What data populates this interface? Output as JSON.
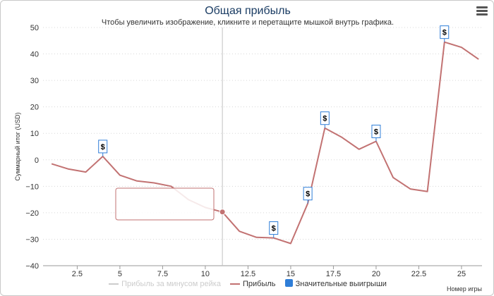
{
  "chart_data": {
    "type": "line",
    "title": "Общая прибыль",
    "subtitle": "Чтобы увеличить изображение, кликните и перетащите мышкой внутрь графика.",
    "xlabel": "Номер игры",
    "ylabel": "Суммарный итог (USD)",
    "xlim": [
      0.5,
      26.2
    ],
    "ylim": [
      -40,
      50
    ],
    "xticks": [
      2.5,
      5,
      7.5,
      10,
      12.5,
      15,
      17.5,
      20,
      22.5,
      25
    ],
    "xtick_labels": [
      "2.5",
      "5",
      "7.5",
      "10",
      "12.5",
      "15",
      "17.5",
      "20",
      "22.5",
      "25"
    ],
    "yticks": [
      -40,
      -30,
      -20,
      -10,
      0,
      10,
      20,
      30,
      40,
      50
    ],
    "ytick_labels": [
      "−40",
      "−30",
      "−20",
      "−10",
      "0",
      "10",
      "20",
      "30",
      "40",
      "50"
    ],
    "series": [
      {
        "name": "Прибыль",
        "color": "#c27272",
        "x": [
          1,
          2,
          3,
          4,
          5,
          6,
          7,
          8,
          9,
          10,
          11,
          12,
          13,
          14,
          15,
          16,
          17,
          18,
          19,
          20,
          21,
          22,
          23,
          24,
          25,
          26
        ],
        "y": [
          -1.5,
          -3.5,
          -4.6,
          1.3,
          -5.8,
          -8,
          -8.7,
          -10,
          -15,
          -18,
          -19.7,
          -27,
          -29.3,
          -29.5,
          -31.6,
          -16.5,
          12,
          8.5,
          4,
          7,
          -6.7,
          -11,
          -12,
          44.5,
          42.5,
          38
        ]
      }
    ],
    "big_wins": {
      "marker": "$",
      "x": [
        4,
        14,
        16,
        17,
        20,
        24
      ],
      "y": [
        1.3,
        -29.5,
        -16.5,
        12,
        7,
        44.5
      ]
    },
    "highlight_point": {
      "x": 11,
      "y": -19.7
    },
    "legend": [
      {
        "label": "Прибыль за минусом рейка",
        "color": "#cccccc",
        "hidden": true
      },
      {
        "label": "Прибыль",
        "color": "#c27272"
      },
      {
        "label": "Значительные выигрыши",
        "color": "#2f7ed8"
      }
    ]
  }
}
